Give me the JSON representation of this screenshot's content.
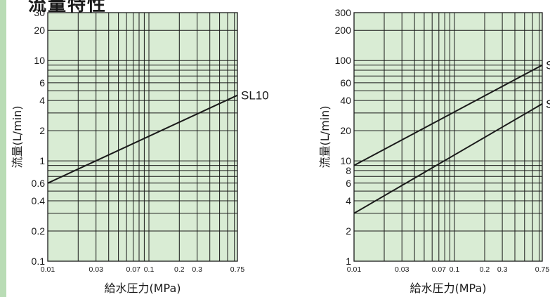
{
  "heading": "流量特性",
  "chart_data": [
    {
      "type": "line",
      "x_scale": "log",
      "y_scale": "log",
      "xlabel": "給水圧力(MPa)",
      "ylabel": "流量(L/min)",
      "xlim": [
        0.01,
        0.75
      ],
      "ylim": [
        0.1,
        30
      ],
      "x_ticks": [
        "0.01",
        "0.03",
        "0.07",
        "0.1",
        "0.2",
        "0.3",
        "0.75"
      ],
      "y_ticks": [
        "0.1",
        "0.2",
        "0.4",
        "0.6",
        "1",
        "2",
        "4",
        "6",
        "10",
        "20",
        "30"
      ],
      "grid": true,
      "series": [
        {
          "name": "SL10",
          "x": [
            0.01,
            0.75
          ],
          "y": [
            0.6,
            4.5
          ]
        }
      ]
    },
    {
      "type": "line",
      "x_scale": "log",
      "y_scale": "log",
      "xlabel": "給水圧力(MPa)",
      "ylabel": "流量(L/min)",
      "xlim": [
        0.01,
        0.75
      ],
      "ylim": [
        1,
        300
      ],
      "x_ticks": [
        "0.01",
        "0.03",
        "0.07",
        "0.1",
        "0.2",
        "0.3",
        "0.75"
      ],
      "y_ticks": [
        "1",
        "2",
        "4",
        "6",
        "8",
        "10",
        "20",
        "40",
        "60",
        "100",
        "200",
        "300"
      ],
      "grid": true,
      "series": [
        {
          "name": "S",
          "x": [
            0.01,
            0.75
          ],
          "y": [
            9,
            90
          ]
        },
        {
          "name": "S",
          "x": [
            0.01,
            0.75
          ],
          "y": [
            3,
            37
          ]
        }
      ]
    }
  ],
  "colors": {
    "plot_background": "#d9ecd4",
    "grid_line": "#1a1a1a",
    "series_line": "#1a1a1a",
    "accent_bar": "#b9dcb5"
  }
}
